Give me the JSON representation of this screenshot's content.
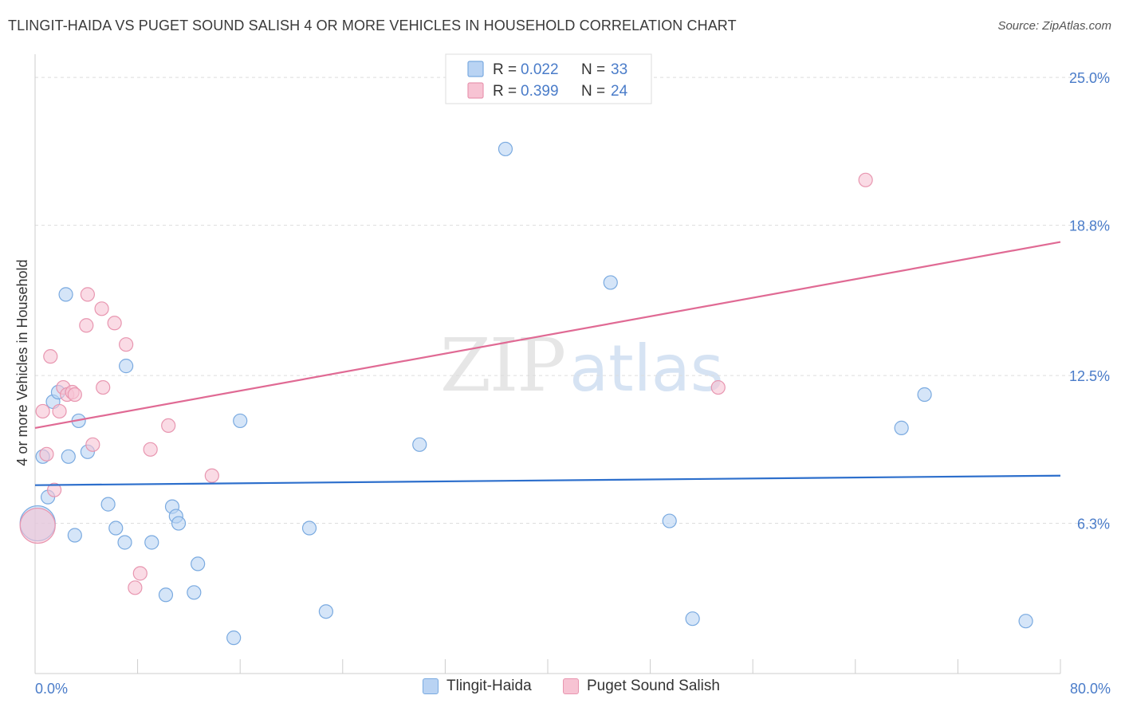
{
  "header": {
    "title": "TLINGIT-HAIDA VS PUGET SOUND SALISH 4 OR MORE VEHICLES IN HOUSEHOLD CORRELATION CHART",
    "source": "Source: ZipAtlas.com"
  },
  "watermark": {
    "zip": "ZIP",
    "atlas": "atlas"
  },
  "colors": {
    "blue_fill": "#b9d3f3",
    "blue_stroke": "#7aaae0",
    "blue_line": "#2d6fcc",
    "pink_fill": "#f7c3d3",
    "pink_stroke": "#e896b0",
    "pink_line": "#e06a94",
    "axis_label": "#4a7cc9",
    "grid": "#dddddd"
  },
  "legend_top": [
    {
      "r_label": "R =",
      "r_value": "0.022",
      "n_label": "N =",
      "n_value": "33"
    },
    {
      "r_label": "R =",
      "r_value": "0.399",
      "n_label": "N =",
      "n_value": "24"
    }
  ],
  "legend_bottom": [
    {
      "label": "Tlingit-Haida"
    },
    {
      "label": "Puget Sound Salish"
    }
  ],
  "chart_data": {
    "type": "scatter",
    "title": "TLINGIT-HAIDA VS PUGET SOUND SALISH 4 OR MORE VEHICLES IN HOUSEHOLD CORRELATION CHART",
    "xlabel": "",
    "ylabel": "4 or more Vehicles in Household",
    "xlim": [
      0,
      80
    ],
    "ylim": [
      0,
      25
    ],
    "x_tick_labels": [
      "0.0%",
      "80.0%"
    ],
    "y_ticks": [
      6.3,
      12.5,
      18.8,
      25.0
    ],
    "y_tick_labels": [
      "6.3%",
      "12.5%",
      "18.8%",
      "25.0%"
    ],
    "series": [
      {
        "name": "Tlingit-Haida",
        "r": 0.022,
        "n": 33,
        "trend": {
          "x0": 0,
          "y0": 7.9,
          "x1": 80,
          "y1": 8.3
        },
        "points": [
          {
            "x": 0.2,
            "y": 6.3,
            "big": true
          },
          {
            "x": 0.6,
            "y": 9.1
          },
          {
            "x": 1.0,
            "y": 7.4
          },
          {
            "x": 1.4,
            "y": 11.4
          },
          {
            "x": 1.8,
            "y": 11.8
          },
          {
            "x": 2.4,
            "y": 15.9
          },
          {
            "x": 2.6,
            "y": 9.1
          },
          {
            "x": 3.1,
            "y": 5.8
          },
          {
            "x": 3.4,
            "y": 10.6
          },
          {
            "x": 4.1,
            "y": 9.3
          },
          {
            "x": 5.7,
            "y": 7.1
          },
          {
            "x": 6.3,
            "y": 6.1
          },
          {
            "x": 7.0,
            "y": 5.5
          },
          {
            "x": 7.1,
            "y": 12.9
          },
          {
            "x": 9.1,
            "y": 5.5
          },
          {
            "x": 10.2,
            "y": 3.3
          },
          {
            "x": 10.7,
            "y": 7.0
          },
          {
            "x": 11.0,
            "y": 6.6
          },
          {
            "x": 11.2,
            "y": 6.3
          },
          {
            "x": 12.4,
            "y": 3.4
          },
          {
            "x": 12.7,
            "y": 4.6
          },
          {
            "x": 15.5,
            "y": 1.5
          },
          {
            "x": 16.0,
            "y": 10.6
          },
          {
            "x": 21.4,
            "y": 6.1
          },
          {
            "x": 22.7,
            "y": 2.6
          },
          {
            "x": 30.0,
            "y": 9.6
          },
          {
            "x": 36.7,
            "y": 22.0
          },
          {
            "x": 44.9,
            "y": 16.4
          },
          {
            "x": 49.5,
            "y": 6.4
          },
          {
            "x": 51.3,
            "y": 2.3
          },
          {
            "x": 67.6,
            "y": 10.3
          },
          {
            "x": 69.4,
            "y": 11.7
          },
          {
            "x": 77.3,
            "y": 2.2
          }
        ]
      },
      {
        "name": "Puget Sound Salish",
        "r": 0.399,
        "n": 24,
        "trend": {
          "x0": 0,
          "y0": 10.3,
          "x1": 80,
          "y1": 18.1
        },
        "points": [
          {
            "x": 0.2,
            "y": 6.2,
            "big": true
          },
          {
            "x": 0.6,
            "y": 11.0
          },
          {
            "x": 0.9,
            "y": 9.2
          },
          {
            "x": 1.2,
            "y": 13.3
          },
          {
            "x": 1.5,
            "y": 7.7
          },
          {
            "x": 1.9,
            "y": 11.0
          },
          {
            "x": 2.2,
            "y": 12.0
          },
          {
            "x": 2.5,
            "y": 11.7
          },
          {
            "x": 2.9,
            "y": 11.8
          },
          {
            "x": 3.1,
            "y": 11.7
          },
          {
            "x": 4.0,
            "y": 14.6
          },
          {
            "x": 4.1,
            "y": 15.9
          },
          {
            "x": 4.5,
            "y": 9.6
          },
          {
            "x": 5.2,
            "y": 15.3
          },
          {
            "x": 5.3,
            "y": 12.0
          },
          {
            "x": 6.2,
            "y": 14.7
          },
          {
            "x": 7.1,
            "y": 13.8
          },
          {
            "x": 7.8,
            "y": 3.6
          },
          {
            "x": 8.2,
            "y": 4.2
          },
          {
            "x": 9.0,
            "y": 9.4
          },
          {
            "x": 10.4,
            "y": 10.4
          },
          {
            "x": 13.8,
            "y": 8.3
          },
          {
            "x": 53.3,
            "y": 12.0
          },
          {
            "x": 64.8,
            "y": 20.7
          }
        ]
      }
    ]
  }
}
